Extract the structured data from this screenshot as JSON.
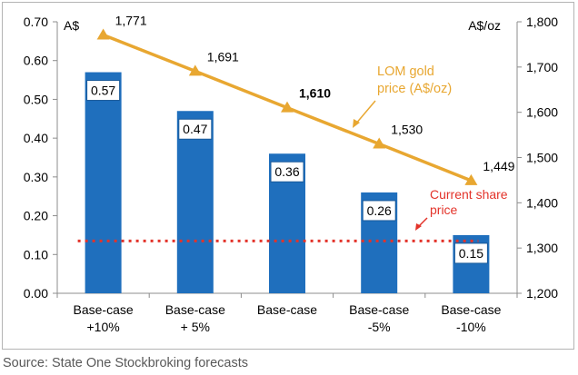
{
  "chart_data": {
    "type": "bar",
    "categories": [
      [
        "Base-case",
        "+10%"
      ],
      [
        "Base-case",
        "+ 5%"
      ],
      [
        "Base-case",
        ""
      ],
      [
        "Base-case",
        "-5%"
      ],
      [
        "Base-case",
        "-10%"
      ]
    ],
    "series": [
      {
        "axis": "left",
        "type": "bar",
        "values": [
          0.57,
          0.47,
          0.36,
          0.26,
          0.15
        ],
        "labels": [
          "0.57",
          "0.47",
          "0.36",
          "0.26",
          "0.15"
        ],
        "color": "#1f6fbd"
      },
      {
        "axis": "right",
        "type": "line",
        "values": [
          1771,
          1691,
          1610,
          1530,
          1449
        ],
        "labels": [
          "1,771",
          "1,691",
          "1,610",
          "1,530",
          "1,449"
        ],
        "color": "#e8a731"
      }
    ],
    "reference_line": {
      "value": 0.135,
      "axis": "left",
      "color": "#e3332a",
      "style": "dotted"
    },
    "annotations": {
      "gold_line": [
        "LOM gold",
        "price (A$/oz)"
      ],
      "gold_line_color": "#e8a731",
      "share_price": [
        "Current share",
        "price"
      ],
      "share_price_color": "#e3332a"
    },
    "left_axis": {
      "unit": "A$",
      "min": 0,
      "max": 0.7,
      "ticks": [
        "0.00",
        "0.10",
        "0.20",
        "0.30",
        "0.40",
        "0.50",
        "0.60",
        "0.70"
      ]
    },
    "right_axis": {
      "unit": "A$/oz",
      "min": 1200,
      "max": 1800,
      "ticks": [
        "1,200",
        "1,300",
        "1,400",
        "1,500",
        "1,600",
        "1,700",
        "1,800"
      ]
    },
    "grid": false,
    "bold_label_index": 2
  },
  "source": "Source: State One Stockbroking forecasts"
}
